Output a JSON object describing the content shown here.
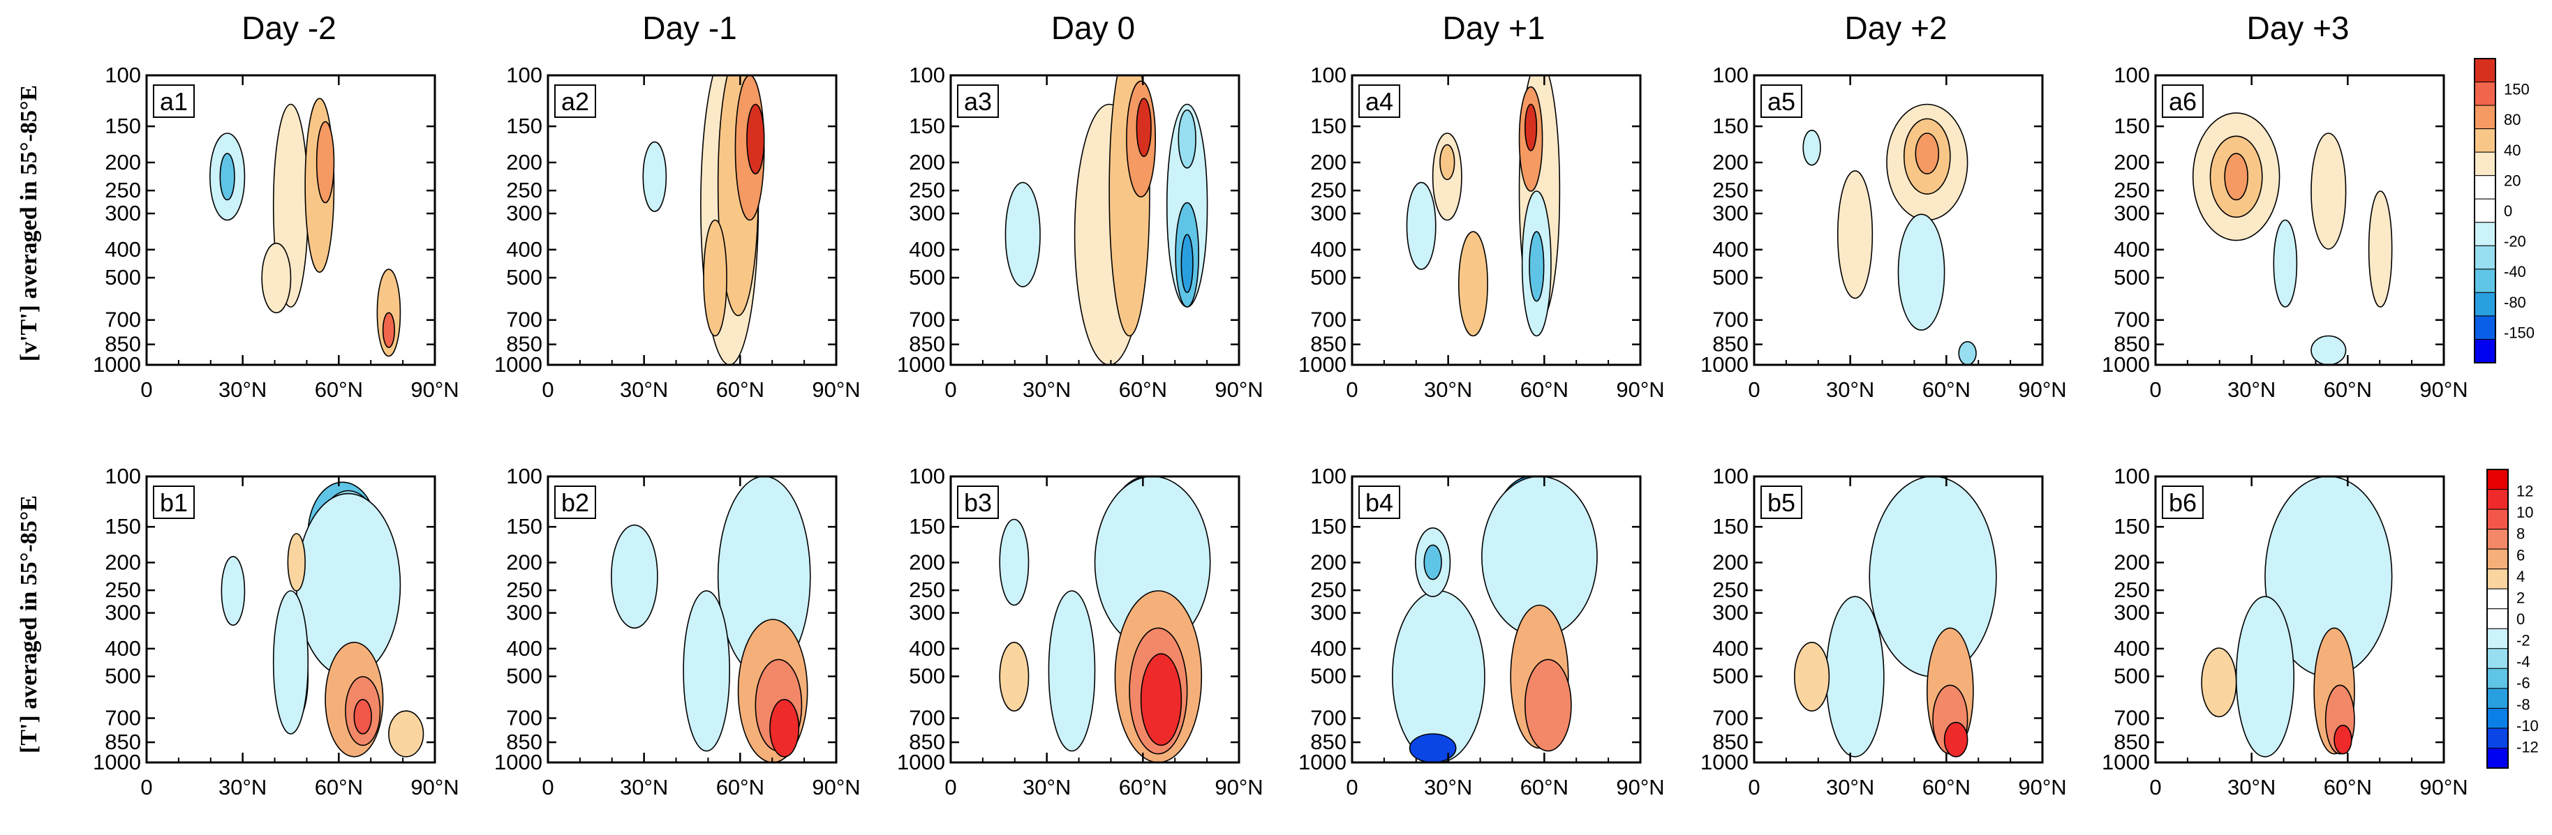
{
  "chart_data": {
    "type": "contour-panels",
    "column_titles": [
      "Day -2",
      "Day -1",
      "Day 0",
      "Day +1",
      "Day +2",
      "Day +3"
    ],
    "row_labels": [
      "[v'T'] averaged in 55°-85°E",
      "[T'] averaged in 55°-85°E"
    ],
    "y_ticks": [
      "100",
      "150",
      "200",
      "250",
      "300",
      "400",
      "500",
      "700",
      "850",
      "1000"
    ],
    "y_tick_values": [
      100,
      150,
      200,
      250,
      300,
      400,
      500,
      700,
      850,
      1000
    ],
    "x_ticks": [
      "0",
      "30°N",
      "60°N",
      "90°N"
    ],
    "x_tick_values": [
      0,
      30,
      60,
      90
    ],
    "xlim": [
      0,
      90
    ],
    "ylim_hPa": [
      100,
      1000
    ],
    "rows": [
      {
        "variable": "v'T'",
        "panels": [
          "a1",
          "a2",
          "a3",
          "a4",
          "a5",
          "a6"
        ],
        "colorbar": {
          "labels": [
            "150",
            "80",
            "40",
            "20",
            "0",
            "-20",
            "-40",
            "-80",
            "-150"
          ],
          "colors": [
            "#d7301f",
            "#f0654b",
            "#f49a62",
            "#f8c788",
            "#fce9c8",
            "#ffffff",
            "#ffffff",
            "#ccf2fa",
            "#96def0",
            "#5fc4e6",
            "#2a9fe0",
            "#0a5fe6",
            "#0000f0"
          ]
        }
      },
      {
        "variable": "T'",
        "panels": [
          "b1",
          "b2",
          "b3",
          "b4",
          "b5",
          "b6"
        ],
        "colorbar": {
          "labels": [
            "12",
            "10",
            "8",
            "6",
            "4",
            "2",
            "0",
            "-2",
            "-4",
            "-6",
            "-8",
            "-10",
            "-12"
          ],
          "colors": [
            "#e60000",
            "#ef2a2a",
            "#f3574a",
            "#f38868",
            "#f5b07a",
            "#fad5a0",
            "#ffffff",
            "#ffffff",
            "#ccf2fa",
            "#96def0",
            "#5fc4e6",
            "#2a9fe0",
            "#0a7fe6",
            "#0a45e6",
            "#0000f0"
          ]
        }
      }
    ]
  }
}
